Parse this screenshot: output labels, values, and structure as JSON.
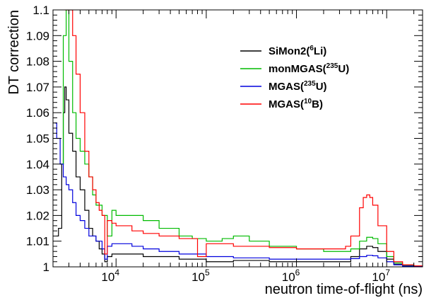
{
  "chart_data": {
    "type": "line",
    "title": "",
    "xlabel": "neutron time-of-flight (ns)",
    "ylabel": "DT correction",
    "xscale": "log",
    "xlim": [
      2000,
      25000000
    ],
    "ylim": [
      1.0,
      1.1
    ],
    "grid": false,
    "legend_position": "top-right",
    "x_ticks": [
      {
        "value": 10000,
        "base": "10",
        "exp": "4"
      },
      {
        "value": 100000,
        "base": "10",
        "exp": "5"
      },
      {
        "value": 1000000,
        "base": "10",
        "exp": "6"
      },
      {
        "value": 10000000,
        "base": "10",
        "exp": "7"
      }
    ],
    "y_ticks": [
      {
        "value": 1.0,
        "label": "1"
      },
      {
        "value": 1.01,
        "label": "1.01"
      },
      {
        "value": 1.02,
        "label": "1.02"
      },
      {
        "value": 1.03,
        "label": "1.03"
      },
      {
        "value": 1.04,
        "label": "1.04"
      },
      {
        "value": 1.05,
        "label": "1.05"
      },
      {
        "value": 1.06,
        "label": "1.06"
      },
      {
        "value": 1.07,
        "label": "1.07"
      },
      {
        "value": 1.08,
        "label": "1.08"
      },
      {
        "value": 1.09,
        "label": "1.09"
      },
      {
        "value": 1.1,
        "label": "1.1"
      }
    ],
    "series": [
      {
        "name_main": "SiMon2(",
        "name_sup": "6",
        "name_tail": "Li)",
        "color": "#000000",
        "points": [
          [
            2200,
            1.012
          ],
          [
            2300,
            1.015
          ],
          [
            2500,
            1.04
          ],
          [
            2600,
            1.06
          ],
          [
            2700,
            1.07
          ],
          [
            2800,
            1.065
          ],
          [
            3000,
            1.052
          ],
          [
            3300,
            1.045
          ],
          [
            3600,
            1.035
          ],
          [
            4000,
            1.03
          ],
          [
            4500,
            1.022
          ],
          [
            5000,
            1.015
          ],
          [
            5500,
            1.012
          ],
          [
            6000,
            1.01
          ],
          [
            6500,
            1.007
          ],
          [
            7000,
            1.005
          ],
          [
            7500,
            1.002
          ],
          [
            8000,
            1.004
          ],
          [
            9000,
            1.005
          ],
          [
            10000,
            1.005
          ],
          [
            15000,
            1.005
          ],
          [
            20000,
            1.004
          ],
          [
            30000,
            1.004
          ],
          [
            50000,
            1.003
          ],
          [
            100000,
            1.002
          ],
          [
            200000,
            1.0025
          ],
          [
            500000,
            1.002
          ],
          [
            1000000,
            1.002
          ],
          [
            2000000,
            1.002
          ],
          [
            3000000,
            1.002
          ],
          [
            4000000,
            1.004
          ],
          [
            5000000,
            1.007
          ],
          [
            6000000,
            1.008
          ],
          [
            7000000,
            1.0075
          ],
          [
            8000000,
            1.006
          ],
          [
            10000000,
            1.003
          ],
          [
            12000000,
            1.001
          ],
          [
            15000000,
            1.0005
          ],
          [
            20000000,
            1.0003
          ],
          [
            25000000,
            1.0003
          ]
        ]
      },
      {
        "name_main": "monMGAS(",
        "name_sup": "235",
        "name_tail": "U)",
        "color": "#00bb00",
        "points": [
          [
            2400,
            1.04
          ],
          [
            2600,
            1.09
          ],
          [
            2800,
            1.1
          ],
          [
            3000,
            1.08
          ],
          [
            3300,
            1.06
          ],
          [
            3600,
            1.05
          ],
          [
            4000,
            1.045
          ],
          [
            4500,
            1.04
          ],
          [
            5000,
            1.035
          ],
          [
            5500,
            1.028
          ],
          [
            6000,
            1.024
          ],
          [
            7000,
            1.02
          ],
          [
            8000,
            1.012
          ],
          [
            9000,
            1.022
          ],
          [
            10000,
            1.02
          ],
          [
            15000,
            1.02
          ],
          [
            20000,
            1.018
          ],
          [
            30000,
            1.015
          ],
          [
            50000,
            1.012
          ],
          [
            70000,
            1.011
          ],
          [
            100000,
            1.01
          ],
          [
            150000,
            1.011
          ],
          [
            200000,
            1.012
          ],
          [
            300000,
            1.01
          ],
          [
            500000,
            1.008
          ],
          [
            1000000,
            1.007
          ],
          [
            2000000,
            1.006
          ],
          [
            3000000,
            1.006
          ],
          [
            4000000,
            1.007
          ],
          [
            5000000,
            1.01
          ],
          [
            6000000,
            1.0115
          ],
          [
            7000000,
            1.011
          ],
          [
            8000000,
            1.009
          ],
          [
            10000000,
            1.004
          ],
          [
            12000000,
            1.0015
          ],
          [
            15000000,
            1.0005
          ],
          [
            20000000,
            1.0003
          ],
          [
            25000000,
            1.0003
          ]
        ]
      },
      {
        "name_main": "MGAS(",
        "name_sup": "235",
        "name_tail": "U)",
        "color": "#0000dd",
        "points": [
          [
            2100,
            1.056
          ],
          [
            2200,
            1.05
          ],
          [
            2400,
            1.04
          ],
          [
            2600,
            1.035
          ],
          [
            2800,
            1.032
          ],
          [
            3000,
            1.03
          ],
          [
            3300,
            1.025
          ],
          [
            3600,
            1.02
          ],
          [
            4000,
            1.018
          ],
          [
            4500,
            1.015
          ],
          [
            5000,
            1.012
          ],
          [
            6000,
            1.01
          ],
          [
            7000,
            1.007
          ],
          [
            7500,
            1.003
          ],
          [
            8000,
            1.008
          ],
          [
            9000,
            1.009
          ],
          [
            10000,
            1.009
          ],
          [
            15000,
            1.008
          ],
          [
            20000,
            1.007
          ],
          [
            30000,
            1.006
          ],
          [
            50000,
            1.005
          ],
          [
            100000,
            1.004
          ],
          [
            200000,
            1.0035
          ],
          [
            500000,
            1.003
          ],
          [
            1000000,
            1.003
          ],
          [
            2000000,
            1.003
          ],
          [
            3000000,
            1.003
          ],
          [
            4000000,
            1.0032
          ],
          [
            5000000,
            1.004
          ],
          [
            6000000,
            1.0045
          ],
          [
            7000000,
            1.0043
          ],
          [
            8000000,
            1.0035
          ],
          [
            10000000,
            1.002
          ],
          [
            12000000,
            1.0008
          ],
          [
            15000000,
            1.0003
          ],
          [
            20000000,
            1.0002
          ],
          [
            25000000,
            1.0002
          ]
        ]
      },
      {
        "name_main": "MGAS(",
        "name_sup": "10",
        "name_tail": "B)",
        "color": "#ff0000",
        "points": [
          [
            2700,
            1.1
          ],
          [
            3000,
            1.1
          ],
          [
            3300,
            1.09
          ],
          [
            3600,
            1.075
          ],
          [
            4000,
            1.06
          ],
          [
            4500,
            1.045
          ],
          [
            5000,
            1.035
          ],
          [
            5500,
            1.03
          ],
          [
            6000,
            1.025
          ],
          [
            6500,
            1.022
          ],
          [
            7000,
            1.02
          ],
          [
            7500,
            1.005
          ],
          [
            8000,
            1.018
          ],
          [
            9000,
            1.017
          ],
          [
            10000,
            1.016
          ],
          [
            15000,
            1.014
          ],
          [
            20000,
            1.013
          ],
          [
            30000,
            1.012
          ],
          [
            50000,
            1.011
          ],
          [
            80000,
            1.004
          ],
          [
            100000,
            1.009
          ],
          [
            200000,
            1.008
          ],
          [
            500000,
            1.0075
          ],
          [
            1000000,
            1.007
          ],
          [
            2000000,
            1.007
          ],
          [
            3000000,
            1.007
          ],
          [
            3500000,
            1.008
          ],
          [
            4000000,
            1.012
          ],
          [
            5000000,
            1.023
          ],
          [
            5500000,
            1.027
          ],
          [
            6000000,
            1.028
          ],
          [
            6500000,
            1.027
          ],
          [
            7000000,
            1.024
          ],
          [
            8000000,
            1.016
          ],
          [
            10000000,
            1.006
          ],
          [
            12000000,
            1.002
          ],
          [
            15000000,
            1.0008
          ],
          [
            20000000,
            1.0004
          ],
          [
            25000000,
            1.0004
          ]
        ]
      }
    ]
  }
}
